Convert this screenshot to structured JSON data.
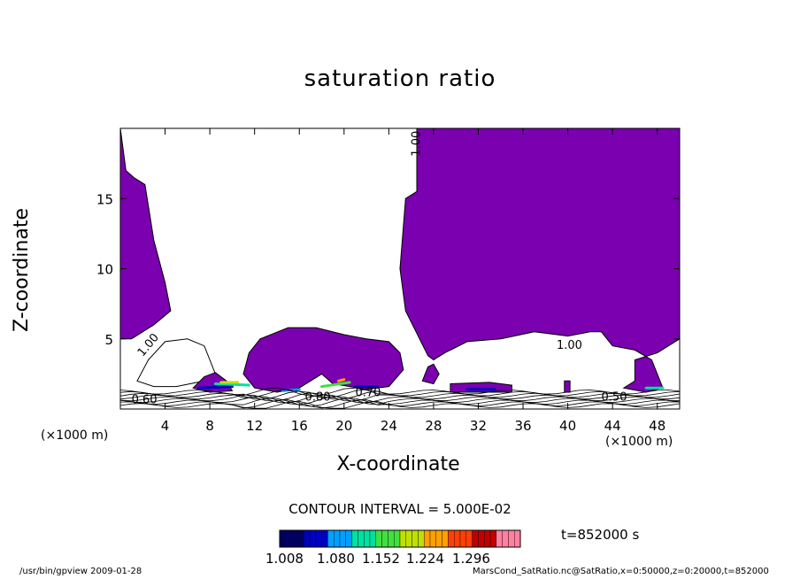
{
  "chart_data": {
    "type": "heatmap",
    "title": "saturation ratio",
    "xlabel": "X-coordinate",
    "ylabel": "Z-coordinate",
    "x_unit": "(×1000 m)",
    "x_unit_right": "(×1000 m)",
    "xlim": [
      0,
      50
    ],
    "ylim": [
      0,
      20
    ],
    "x_ticks": [
      4,
      8,
      12,
      16,
      20,
      24,
      28,
      32,
      36,
      40,
      44,
      48
    ],
    "y_ticks": [
      5,
      10,
      15
    ],
    "contour_labels": [
      "1.00",
      "1.00",
      "1.00",
      "0.60",
      "0.80",
      "0.70",
      "0.50"
    ],
    "contour_interval": "CONTOUR INTERVAL = 5.000E-02",
    "time_label": "t=852000 s",
    "colorbar": {
      "tick_labels": [
        "1.008",
        "1.080",
        "1.152",
        "1.224",
        "1.296"
      ],
      "colors": [
        "#000060",
        "#0000c0",
        "#00a0ff",
        "#00e0a0",
        "#40e040",
        "#c0e000",
        "#ffa000",
        "#ff4000",
        "#c00000",
        "#ff80a0"
      ]
    },
    "fill_color": "#7a00b0"
  },
  "footer": {
    "left": "/usr/bin/gpview   2009-01-28",
    "right": "MarsCond_SatRatio.nc@SatRatio,x=0:50000,z=0:20000,t=852000"
  }
}
